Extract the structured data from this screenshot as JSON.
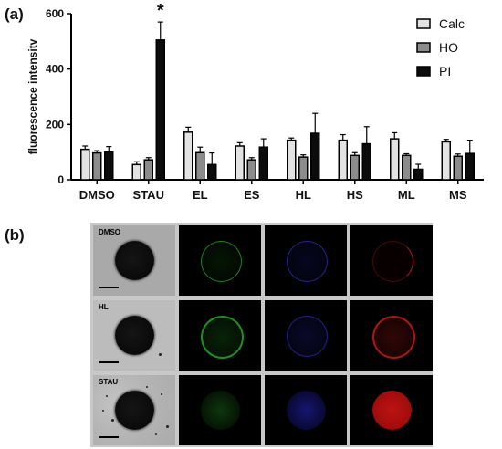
{
  "panels": {
    "a": "(a)",
    "b": "(b)"
  },
  "chart_data": {
    "type": "bar",
    "categories": [
      "DMSO",
      "STAU",
      "EL",
      "ES",
      "HL",
      "HS",
      "ML",
      "MS"
    ],
    "ylabel": "fluorescence intensitv",
    "xlabel": "",
    "ylim": [
      0,
      600
    ],
    "yticks": [
      0,
      200,
      400,
      600
    ],
    "grid": false,
    "legend_position": "top-right",
    "annotation": {
      "text": "*",
      "category": "STAU",
      "series": "PI"
    },
    "series": [
      {
        "name": "Calc",
        "color": "#e3e3e3",
        "values": [
          110,
          55,
          172,
          122,
          143,
          143,
          148,
          137
        ],
        "errors": [
          12,
          10,
          18,
          12,
          8,
          20,
          22,
          9
        ]
      },
      {
        "name": "HO",
        "color": "#8c8c8c",
        "values": [
          97,
          72,
          98,
          72,
          82,
          88,
          88,
          85
        ],
        "errors": [
          8,
          8,
          20,
          8,
          8,
          10,
          6,
          8
        ]
      },
      {
        "name": "PI",
        "color": "#0c0c0c",
        "values": [
          100,
          505,
          55,
          118,
          168,
          130,
          38,
          95
        ],
        "errors": [
          20,
          65,
          42,
          30,
          72,
          62,
          18,
          48
        ]
      }
    ]
  },
  "micrographs": {
    "rows": [
      {
        "label": "DMSO"
      },
      {
        "label": "HL"
      },
      {
        "label": "STAU"
      }
    ],
    "channel_colors": [
      "#00ff00",
      "#2020ff",
      "#ff0000"
    ]
  }
}
